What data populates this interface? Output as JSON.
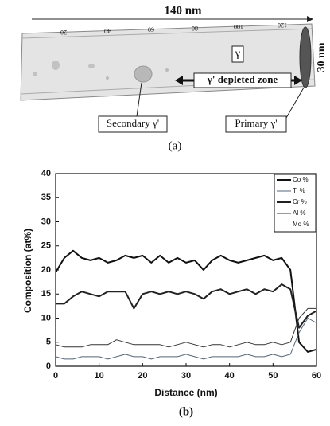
{
  "panel_a": {
    "length_label": "140 nm",
    "width_label": "30 nm",
    "scale_ticks": [
      "20",
      "40",
      "60",
      "80",
      "100",
      "120"
    ],
    "gamma_label": "γ",
    "depleted_label": "γ' depleted zone",
    "secondary_label": "Secondary γ'",
    "primary_label": "Primary γ'",
    "caption": "(a)"
  },
  "chart_data": {
    "type": "line",
    "caption": "(b)",
    "x_label": "Distance (nm)",
    "y_label": "Composition (at%)",
    "x": [
      0,
      2,
      4,
      6,
      8,
      10,
      12,
      14,
      16,
      18,
      20,
      22,
      24,
      26,
      28,
      30,
      32,
      34,
      36,
      38,
      40,
      42,
      44,
      46,
      48,
      50,
      52,
      54,
      56,
      58,
      60
    ],
    "series": [
      {
        "name": "Co %",
        "color": "#111111",
        "line_width": 2,
        "values": [
          19.5,
          22.5,
          24,
          22.5,
          22,
          22.5,
          21.5,
          22,
          23,
          22.5,
          23,
          21.5,
          23,
          21.5,
          22.5,
          21.5,
          22,
          20,
          22,
          23,
          22,
          21.5,
          22,
          22.5,
          23,
          22,
          22.5,
          20,
          5,
          3,
          3.5
        ]
      },
      {
        "name": "Ti %",
        "color": "#556677",
        "line_width": 1,
        "values": [
          2,
          1.5,
          1.5,
          2,
          2,
          2,
          1.5,
          2,
          2.5,
          2,
          2,
          1.5,
          2,
          2,
          2,
          2.5,
          2,
          1.5,
          2,
          2,
          2,
          2,
          2.5,
          2,
          2,
          2.5,
          2,
          2.5,
          7,
          10,
          9
        ]
      },
      {
        "name": "Cr %",
        "color": "#222222",
        "line_width": 2,
        "values": [
          13,
          13,
          14.5,
          15.5,
          15,
          14.5,
          15.5,
          15.5,
          15.5,
          12,
          15,
          15.5,
          15,
          15.5,
          15,
          15.5,
          15,
          14,
          15.5,
          16,
          15,
          15.5,
          16,
          15,
          16,
          15.5,
          17,
          16,
          8,
          10.5,
          11.5
        ]
      },
      {
        "name": "Al %",
        "color": "#333333",
        "line_width": 1,
        "values": [
          4.5,
          4,
          4,
          4,
          4.5,
          4.5,
          4.5,
          5.5,
          5,
          4.5,
          4.5,
          4.5,
          4.5,
          4,
          4.5,
          5,
          4.5,
          4,
          4.5,
          4.5,
          4,
          4.5,
          5,
          4.5,
          4.5,
          5,
          4.5,
          5,
          10,
          12,
          12
        ]
      },
      {
        "name": "Mo %",
        "color": "#111111",
        "line_width": 1,
        "values": [
          null,
          null,
          null,
          null,
          null,
          null,
          null,
          null,
          null,
          null,
          null,
          null,
          null,
          null,
          null,
          null,
          null,
          null,
          null,
          null,
          null,
          null,
          null,
          null,
          null,
          null,
          null,
          null,
          null,
          null,
          null
        ]
      }
    ],
    "xlim": [
      0,
      60
    ],
    "xticks": [
      0,
      10,
      20,
      30,
      40,
      50,
      60
    ],
    "ylim": [
      0,
      40
    ],
    "yticks": [
      0,
      5,
      10,
      15,
      20,
      25,
      30,
      35,
      40
    ]
  }
}
